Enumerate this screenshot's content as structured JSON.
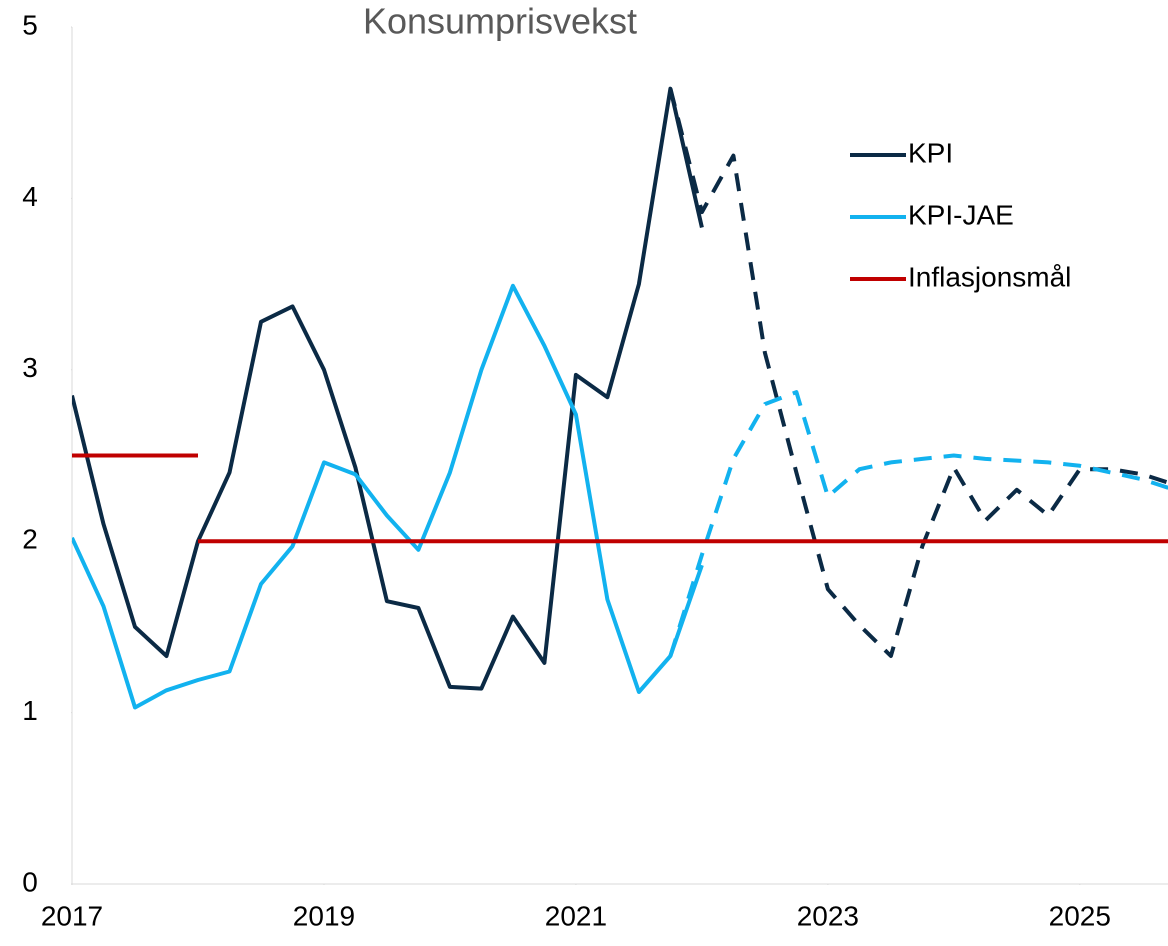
{
  "chart_data": {
    "type": "line",
    "title": "Konsumprisvekst",
    "x": [
      2017,
      2017.25,
      2017.5,
      2017.75,
      2018,
      2018.25,
      2018.5,
      2018.75,
      2019,
      2019.25,
      2019.5,
      2019.75,
      2020,
      2020.25,
      2020.5,
      2020.75,
      2021,
      2021.25,
      2021.5,
      2021.75,
      2022,
      2022.25,
      2022.5,
      2022.75,
      2023,
      2023.25,
      2023.5,
      2023.75,
      2024,
      2024.25,
      2024.5,
      2024.75,
      2025,
      2025.25,
      2025.5,
      2025.75
    ],
    "series": [
      {
        "name": "KPI",
        "color": "#0b2a45",
        "values": [
          2.85,
          2.1,
          1.5,
          1.33,
          2.0,
          2.4,
          3.28,
          3.37,
          3.0,
          2.43,
          1.65,
          1.61,
          1.15,
          1.14,
          1.56,
          1.29,
          2.97,
          2.84,
          3.5,
          4.64,
          3.83,
          null,
          null,
          null,
          null,
          null,
          null,
          null,
          null,
          null,
          null,
          null,
          null,
          null,
          null,
          null
        ],
        "projection": [
          null,
          null,
          null,
          null,
          null,
          null,
          null,
          null,
          null,
          null,
          null,
          null,
          null,
          null,
          null,
          null,
          null,
          null,
          null,
          4.64,
          3.92,
          4.25,
          3.1,
          2.4,
          1.72,
          1.51,
          1.33,
          1.97,
          2.43,
          2.12,
          2.3,
          2.15,
          2.42,
          2.42,
          2.39,
          2.33
        ]
      },
      {
        "name": "KPI-JAE",
        "color": "#12b2ef",
        "values": [
          2.02,
          1.62,
          1.03,
          1.13,
          1.19,
          1.24,
          1.75,
          1.97,
          2.46,
          2.39,
          2.15,
          1.95,
          2.4,
          3.0,
          3.49,
          3.14,
          2.74,
          1.66,
          1.12,
          1.33,
          1.86,
          null,
          null,
          null,
          null,
          null,
          null,
          null,
          null,
          null,
          null,
          null,
          null,
          null,
          null,
          null
        ],
        "projection": [
          null,
          null,
          null,
          null,
          null,
          null,
          null,
          null,
          null,
          null,
          null,
          null,
          null,
          null,
          null,
          null,
          null,
          null,
          null,
          1.33,
          1.92,
          2.48,
          2.8,
          2.87,
          2.26,
          2.42,
          2.46,
          2.48,
          2.5,
          2.48,
          2.47,
          2.46,
          2.44,
          2.4,
          2.36,
          2.3
        ]
      },
      {
        "name": "Inflasjonsmål",
        "color": "#c00000",
        "x": [
          2017,
          2018,
          2018,
          2018,
          2025.7
        ],
        "values": [
          2.5,
          2.5,
          null,
          2,
          2
        ]
      }
    ],
    "xlim": [
      2017,
      2025.7
    ],
    "xticks": [
      2017,
      2019,
      2021,
      2023,
      2025
    ],
    "ylim": [
      0,
      5
    ],
    "yticks": [
      0,
      1,
      2,
      3,
      4,
      5
    ],
    "grid": false,
    "legend": "upper right"
  }
}
